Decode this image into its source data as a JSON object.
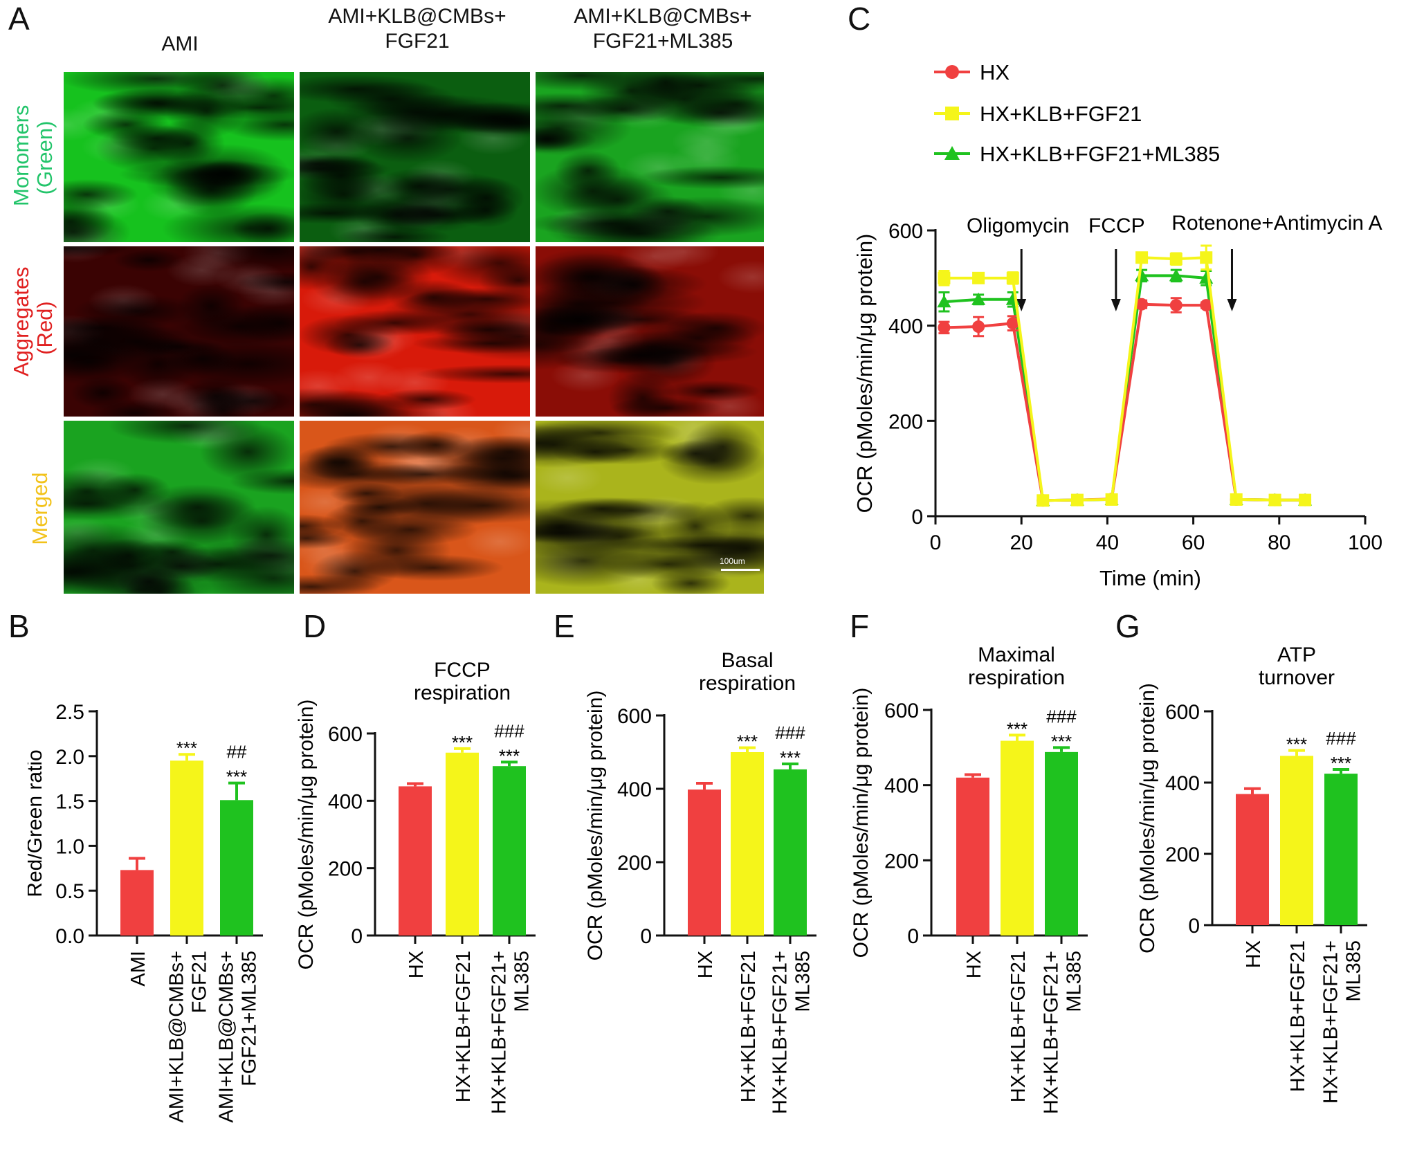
{
  "panel_letters": [
    "A",
    "B",
    "C",
    "D",
    "E",
    "F",
    "G"
  ],
  "panelA": {
    "columns": [
      "AMI",
      "AMI+KLB@CMBs+\nFGF21",
      "AMI+KLB@CMBs+\nFGF21+ML385"
    ],
    "rows": [
      {
        "label": "Monomers\n(Green)",
        "color": "#22c46a"
      },
      {
        "label": "Aggregates\n(Red)",
        "color": "#e02020"
      },
      {
        "label": "Merged",
        "color": "#f2c21a"
      }
    ],
    "scale_bar": "100um",
    "tints": {
      "Monomers": [
        "#16c21e",
        "#0b5e10",
        "#1aa420"
      ],
      "Aggregates": [
        "#3a0303",
        "#d81a0a",
        "#8a0d06"
      ],
      "Merged": [
        "#1aa320",
        "#d9561a",
        "#aab41c"
      ]
    }
  },
  "colors": {
    "HX": "#f04040",
    "KLB": "#f5f51a",
    "ML385": "#1fc21f"
  },
  "chart_data": [
    {
      "id": "C",
      "type": "line",
      "xlabel": "Time (min)",
      "ylabel": "OCR (pMoles/min/μg protein)",
      "xlim": [
        0,
        100
      ],
      "ylim": [
        0,
        600
      ],
      "xticks": [
        0,
        20,
        40,
        60,
        80,
        100
      ],
      "yticks": [
        0,
        200,
        400,
        600
      ],
      "x": [
        2,
        10,
        18,
        25,
        33,
        41,
        48,
        56,
        63,
        70,
        79,
        86
      ],
      "series": [
        {
          "name": "HX",
          "marker": "circle",
          "values": [
            396,
            398,
            405,
            33,
            34,
            36,
            445,
            443,
            443,
            35,
            34,
            34
          ],
          "err": [
            12,
            20,
            15,
            3,
            3,
            3,
            8,
            15,
            6,
            3,
            3,
            3
          ]
        },
        {
          "name": "HX+KLB+FGF21",
          "marker": "square",
          "values": [
            500,
            500,
            500,
            33,
            34,
            35,
            543,
            540,
            543,
            35,
            34,
            34
          ],
          "err": [
            15,
            10,
            12,
            3,
            3,
            3,
            10,
            12,
            25,
            3,
            3,
            3
          ]
        },
        {
          "name": "HX+KLB+FGF21+ML385",
          "marker": "triangle",
          "values": [
            450,
            455,
            455,
            33,
            34,
            35,
            505,
            505,
            500,
            35,
            34,
            34
          ],
          "err": [
            20,
            10,
            15,
            3,
            3,
            3,
            12,
            12,
            15,
            3,
            3,
            3
          ]
        }
      ],
      "annotations": [
        {
          "text": "Oligomycin",
          "x": 20
        },
        {
          "text": "FCCP",
          "x": 42
        },
        {
          "text": "Rotenone+Antimycin A",
          "x": 69
        }
      ]
    },
    {
      "id": "B",
      "type": "bar",
      "title": "",
      "ylabel": "Red/Green ratio",
      "ylim": [
        0,
        2.5
      ],
      "yticks": [
        "0.0",
        "0.5",
        "1.0",
        "1.5",
        "2.0",
        "2.5"
      ],
      "categories": [
        "AMI",
        "AMI+KLB@CMBs+\nFGF21",
        "AMI+KLB@CMBs+\nFGF21+ML385"
      ],
      "values": [
        0.73,
        1.95,
        1.51
      ],
      "err": [
        0.13,
        0.07,
        0.19
      ],
      "sig": [
        [
          ""
        ],
        [
          "***"
        ],
        [
          "##",
          "***"
        ]
      ]
    },
    {
      "id": "D",
      "type": "bar",
      "title": "FCCP\nrespiration",
      "ylabel": "OCR (pMoles/min/μg protein)",
      "ylim": [
        0,
        600
      ],
      "yticks": [
        "0",
        "200",
        "400",
        "600"
      ],
      "categories": [
        "HX",
        "HX+KLB+FGF21",
        "HX+KLB+FGF21+\nML385"
      ],
      "values": [
        443,
        543,
        503
      ],
      "err": [
        8,
        12,
        12
      ],
      "sig": [
        [
          ""
        ],
        [
          "***"
        ],
        [
          "###",
          "***"
        ]
      ]
    },
    {
      "id": "E",
      "type": "bar",
      "title": "Basal\nrespiration",
      "ylabel": "OCR (pMoles/min/μg protein)",
      "ylim": [
        0,
        600
      ],
      "yticks": [
        "0",
        "200",
        "400",
        "600"
      ],
      "categories": [
        "HX",
        "HX+KLB+FGF21",
        "HX+KLB+FGF21+\nML385"
      ],
      "values": [
        398,
        500,
        453
      ],
      "err": [
        17,
        12,
        15
      ],
      "sig": [
        [
          ""
        ],
        [
          "***"
        ],
        [
          "###",
          "***"
        ]
      ]
    },
    {
      "id": "F",
      "type": "bar",
      "title": "Maximal\nrespiration",
      "ylabel": "OCR (pMoles/min/μg protein)",
      "ylim": [
        0,
        600
      ],
      "yticks": [
        "0",
        "200",
        "400",
        "600"
      ],
      "categories": [
        "HX",
        "HX+KLB+FGF21",
        "HX+KLB+FGF21+\nML385"
      ],
      "values": [
        420,
        518,
        488
      ],
      "err": [
        8,
        15,
        12
      ],
      "sig": [
        [
          ""
        ],
        [
          "***"
        ],
        [
          "###",
          "***"
        ]
      ]
    },
    {
      "id": "G",
      "type": "bar",
      "title": "ATP\nturnover",
      "ylabel": "OCR (pMoles/min/μg protein)",
      "ylim": [
        0,
        600
      ],
      "yticks": [
        "0",
        "200",
        "400",
        "600"
      ],
      "categories": [
        "HX",
        "HX+KLB+FGF21",
        "HX+KLB+FGF21+\nML385"
      ],
      "values": [
        368,
        475,
        425
      ],
      "err": [
        15,
        15,
        12
      ],
      "sig": [
        [
          ""
        ],
        [
          "***"
        ],
        [
          "###",
          "***"
        ]
      ]
    }
  ]
}
